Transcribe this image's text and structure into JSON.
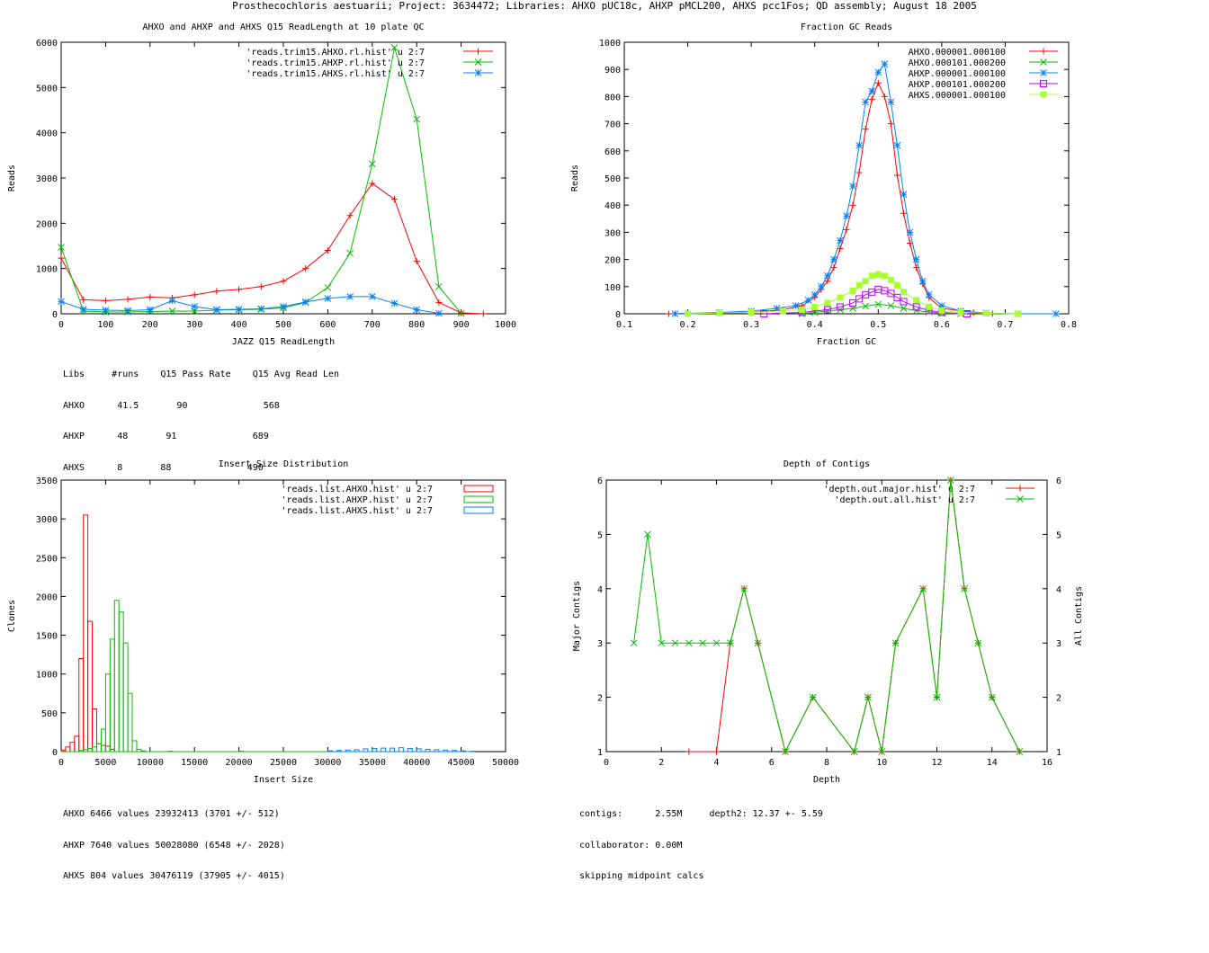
{
  "page": {
    "title": "Prosthecochloris aestuarii; Project: 3634472; Libraries: AHXO pUC18c, AHXP pMCL200, AHXS pcc1Fos; QD assembly; August 18 2005"
  },
  "colors": {
    "red": "#ff0000",
    "green": "#00c000",
    "blue": "#0080ff",
    "magenta": "#c000ff",
    "lime": "#aaff33"
  },
  "chart_data": [
    {
      "id": "readlength",
      "type": "line",
      "title": "AHXO and AHXP and AHXS Q15 ReadLength at 10 plate QC",
      "xlabel": "JAZZ Q15 ReadLength",
      "ylabel": "Reads",
      "xlim": [
        0,
        1000
      ],
      "ylim": [
        0,
        6000
      ],
      "xticks": [
        0,
        100,
        200,
        300,
        400,
        500,
        600,
        700,
        800,
        900,
        1000
      ],
      "yticks": [
        0,
        1000,
        2000,
        3000,
        4000,
        5000,
        6000
      ],
      "legend": "top-right",
      "series": [
        {
          "name": "'reads.trim15.AHXO.rl.hist' u 2:7",
          "color": "#ff0000",
          "marker": "plus",
          "x": [
            0,
            50,
            100,
            150,
            200,
            250,
            300,
            350,
            400,
            450,
            500,
            550,
            600,
            650,
            700,
            750,
            800,
            850,
            900,
            950
          ],
          "y": [
            1230,
            310,
            290,
            320,
            370,
            350,
            420,
            500,
            540,
            600,
            720,
            1000,
            1400,
            2170,
            2880,
            2530,
            1160,
            250,
            20,
            0
          ]
        },
        {
          "name": "'reads.trim15.AHXP.rl.hist' u 2:7",
          "color": "#00c000",
          "marker": "cross",
          "x": [
            0,
            50,
            100,
            150,
            200,
            250,
            300,
            350,
            400,
            450,
            500,
            550,
            600,
            650,
            700,
            750,
            800,
            850,
            900
          ],
          "y": [
            1470,
            60,
            40,
            40,
            50,
            60,
            60,
            80,
            90,
            100,
            130,
            250,
            580,
            1340,
            3310,
            5880,
            4300,
            600,
            10
          ]
        },
        {
          "name": "'reads.trim15.AHXS.rl.hist' u 2:7",
          "color": "#0080ff",
          "marker": "star",
          "x": [
            0,
            50,
            100,
            150,
            200,
            250,
            300,
            350,
            400,
            450,
            500,
            550,
            600,
            650,
            700,
            750,
            800,
            850
          ],
          "y": [
            270,
            100,
            80,
            70,
            90,
            290,
            160,
            90,
            100,
            110,
            160,
            260,
            340,
            380,
            380,
            230,
            90,
            10
          ]
        }
      ]
    },
    {
      "id": "gc",
      "type": "line",
      "title": "Fraction GC Reads",
      "xlabel": "Fraction GC",
      "ylabel": "Reads",
      "xlim": [
        0.1,
        0.8
      ],
      "ylim": [
        0,
        1000
      ],
      "xticks": [
        0.1,
        0.2,
        0.3,
        0.4,
        0.5,
        0.6,
        0.7,
        0.8
      ],
      "yticks": [
        0,
        100,
        200,
        300,
        400,
        500,
        600,
        700,
        800,
        900,
        1000
      ],
      "legend": "top-right",
      "series": [
        {
          "name": "AHXO.000001.000100",
          "color": "#ff0000",
          "marker": "plus",
          "x": [
            0.17,
            0.3,
            0.35,
            0.38,
            0.4,
            0.41,
            0.42,
            0.43,
            0.44,
            0.45,
            0.46,
            0.47,
            0.48,
            0.49,
            0.5,
            0.51,
            0.52,
            0.53,
            0.54,
            0.55,
            0.56,
            0.57,
            0.58,
            0.6,
            0.65,
            0.68
          ],
          "y": [
            0,
            5,
            15,
            30,
            60,
            90,
            120,
            170,
            240,
            310,
            400,
            520,
            680,
            790,
            850,
            800,
            700,
            510,
            370,
            260,
            170,
            110,
            60,
            20,
            5,
            0
          ]
        },
        {
          "name": "AHXO.000101.000200",
          "color": "#00c000",
          "marker": "cross",
          "x": [
            0.38,
            0.4,
            0.42,
            0.44,
            0.46,
            0.48,
            0.5,
            0.52,
            0.54,
            0.56,
            0.58,
            0.6,
            0.63
          ],
          "y": [
            0,
            5,
            10,
            15,
            20,
            28,
            35,
            30,
            20,
            12,
            6,
            2,
            0
          ]
        },
        {
          "name": "AHXP.000001.000100",
          "color": "#0080ff",
          "marker": "star",
          "x": [
            0.18,
            0.25,
            0.3,
            0.34,
            0.37,
            0.39,
            0.4,
            0.41,
            0.42,
            0.43,
            0.44,
            0.45,
            0.46,
            0.47,
            0.48,
            0.49,
            0.5,
            0.51,
            0.52,
            0.53,
            0.54,
            0.55,
            0.56,
            0.57,
            0.58,
            0.6,
            0.63,
            0.67,
            0.72,
            0.78
          ],
          "y": [
            0,
            5,
            10,
            20,
            30,
            50,
            70,
            100,
            140,
            200,
            270,
            360,
            470,
            620,
            780,
            820,
            890,
            920,
            780,
            620,
            440,
            300,
            200,
            120,
            70,
            30,
            10,
            3,
            0,
            0
          ]
        },
        {
          "name": "AHXP.000101.000200",
          "color": "#c000ff",
          "marker": "box",
          "x": [
            0.32,
            0.38,
            0.42,
            0.44,
            0.46,
            0.47,
            0.48,
            0.49,
            0.5,
            0.51,
            0.52,
            0.53,
            0.54,
            0.56,
            0.58,
            0.6,
            0.64
          ],
          "y": [
            0,
            5,
            15,
            25,
            40,
            55,
            70,
            80,
            90,
            85,
            75,
            60,
            45,
            25,
            12,
            5,
            0
          ]
        },
        {
          "name": "AHXS.000001.000100",
          "color": "#aaff33",
          "marker": "filledbox",
          "x": [
            0.2,
            0.25,
            0.3,
            0.35,
            0.38,
            0.4,
            0.42,
            0.44,
            0.46,
            0.47,
            0.48,
            0.49,
            0.5,
            0.51,
            0.52,
            0.53,
            0.54,
            0.56,
            0.58,
            0.6,
            0.63,
            0.67,
            0.72
          ],
          "y": [
            0,
            3,
            5,
            10,
            15,
            25,
            40,
            60,
            85,
            105,
            120,
            140,
            145,
            140,
            125,
            105,
            80,
            50,
            25,
            12,
            5,
            2,
            0
          ]
        }
      ]
    },
    {
      "id": "insert",
      "type": "bar",
      "title": "Insert Size Distribution",
      "xlabel": "Insert Size",
      "ylabel": "Clones",
      "xlim": [
        0,
        50000
      ],
      "ylim": [
        0,
        3500
      ],
      "xticks": [
        0,
        5000,
        10000,
        15000,
        20000,
        25000,
        30000,
        35000,
        40000,
        45000,
        50000
      ],
      "yticks": [
        0,
        500,
        1000,
        1500,
        2000,
        2500,
        3000,
        3500
      ],
      "legend": "top-right",
      "binwidth": 500,
      "series": [
        {
          "name": "'reads.list.AHXO.hist' u 2:7",
          "color": "#ff0000",
          "x": [
            0,
            500,
            1000,
            1500,
            2000,
            2500,
            3000,
            3500,
            4000,
            4500,
            5000,
            5500
          ],
          "y": [
            20,
            60,
            120,
            200,
            1200,
            3050,
            1680,
            550,
            100,
            80,
            70,
            30
          ]
        },
        {
          "name": "'reads.list.AHXP.hist' u 2:7",
          "color": "#00c000",
          "x": [
            0,
            2000,
            2500,
            3000,
            3500,
            4000,
            4500,
            5000,
            5500,
            6000,
            6500,
            7000,
            7500,
            8000,
            8500,
            9000,
            12000,
            20000,
            30000
          ],
          "y": [
            5,
            15,
            25,
            40,
            60,
            100,
            290,
            1000,
            1450,
            1950,
            1800,
            1400,
            750,
            140,
            30,
            10,
            5,
            5,
            3
          ]
        },
        {
          "name": "'reads.list.AHXS.hist' u 2:7",
          "color": "#0080ff",
          "x": [
            30000,
            31000,
            32000,
            33000,
            34000,
            35000,
            36000,
            37000,
            38000,
            39000,
            40000,
            41000,
            42000,
            43000,
            44000,
            45000,
            46000
          ],
          "y": [
            10,
            15,
            20,
            25,
            35,
            40,
            45,
            45,
            50,
            40,
            35,
            30,
            25,
            20,
            15,
            10,
            5
          ]
        }
      ]
    },
    {
      "id": "depth",
      "type": "line",
      "title": "Depth of Contigs",
      "xlabel": "Depth",
      "ylabel": "Major Contigs",
      "y2label": "All Contigs",
      "xlim": [
        0,
        16
      ],
      "ylim": [
        1,
        6
      ],
      "xticks": [
        0,
        2,
        4,
        6,
        8,
        10,
        12,
        14,
        16
      ],
      "yticks": [
        1,
        2,
        3,
        4,
        5,
        6
      ],
      "legend": "top-right",
      "series": [
        {
          "name": "'depth.out.major.hist' u 2:7",
          "color": "#ff0000",
          "marker": "plus",
          "x": [
            3,
            4,
            4.5,
            5,
            5.5,
            6.5,
            7.5,
            9,
            9.5,
            10,
            10.5,
            11.5,
            12,
            12.5,
            13,
            13.5,
            14,
            15
          ],
          "y": [
            1,
            1,
            3,
            4,
            3,
            1,
            2,
            1,
            2,
            1,
            3,
            4,
            2,
            6,
            4,
            3,
            2,
            1
          ]
        },
        {
          "name": "'depth.out.all.hist' u 2:7",
          "color": "#00c000",
          "marker": "cross",
          "x": [
            1,
            1.5,
            2,
            2.5,
            3,
            3.5,
            4,
            4.5,
            5,
            5.5,
            6.5,
            7.5,
            9,
            9.5,
            10,
            10.5,
            11.5,
            12,
            12.5,
            13,
            13.5,
            14,
            15
          ],
          "y": [
            3,
            5,
            3,
            3,
            3,
            3,
            3,
            3,
            4,
            3,
            1,
            2,
            1,
            2,
            1,
            3,
            4,
            2,
            6,
            4,
            3,
            2,
            1
          ]
        }
      ]
    }
  ],
  "info": {
    "readlength": [
      "Libs     #runs    Q15 Pass Rate    Q15 Avg Read Len",
      "AHXO      41.5       90              568",
      "AHXP      48       91              689",
      "AHXS      8       88              490"
    ],
    "insert": [
      "AHXO 6466 values 23932413 (3701 +/- 512)",
      "AHXP 7640 values 50028080 (6548 +/- 2028)",
      "AHXS 804 values 30476119 (37905 +/- 4015)"
    ],
    "depth": [
      "contigs:      2.55M     depth2: 12.37 +- 5.59",
      "collaborator: 0.00M",
      "skipping midpoint calcs"
    ]
  }
}
